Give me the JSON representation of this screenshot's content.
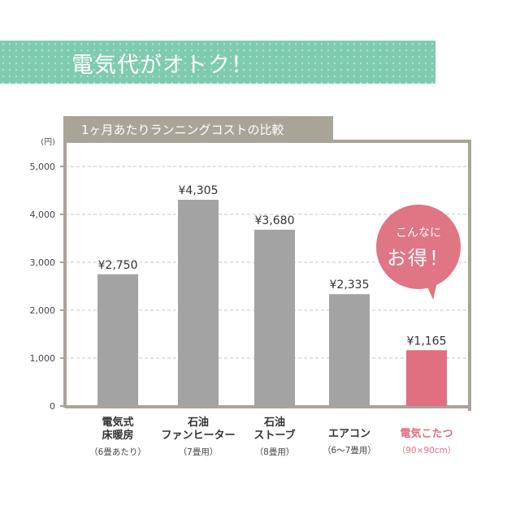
{
  "banner": {
    "title": "電気代がオトク！"
  },
  "chart_data": {
    "type": "bar",
    "title": "1ヶ月あたりランニングコストの比較",
    "ylabel": "(円)",
    "ylim": [
      0,
      5000
    ],
    "yticks": [
      "0",
      "1,000",
      "2,000",
      "3,000",
      "4,000",
      "5,000"
    ],
    "grid": true,
    "categories": [
      {
        "name": "電気式\n床暖房",
        "sub": "（6畳あたり）"
      },
      {
        "name": "石油\nファンヒーター",
        "sub": "（7畳用）"
      },
      {
        "name": "石油\nストーブ",
        "sub": "（8畳用）"
      },
      {
        "name": "エアコン",
        "sub": "（6〜7畳用）"
      },
      {
        "name": "電気こたつ",
        "sub": "（90×90cm）"
      }
    ],
    "values": [
      2750,
      4305,
      3680,
      2335,
      1165
    ],
    "value_labels": [
      "¥2,750",
      "¥4,305",
      "¥3,680",
      "¥2,335",
      "¥1,165"
    ],
    "highlight_index": 4,
    "colors": {
      "bar": "#a3a3a3",
      "highlight": "#e06f7f",
      "frame": "#aaa498",
      "banner": "#7ecbb0"
    }
  },
  "callout": {
    "line1": "こんなに",
    "line2": "お得！"
  }
}
